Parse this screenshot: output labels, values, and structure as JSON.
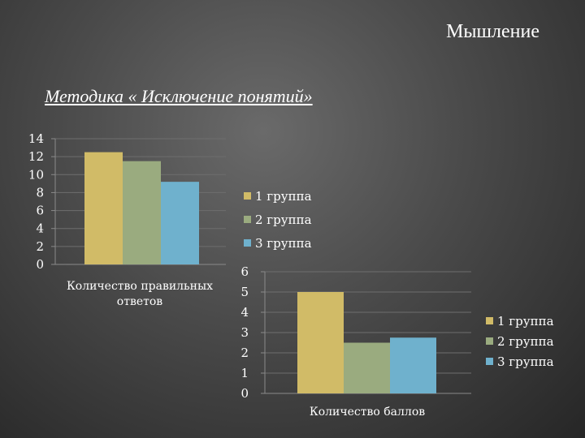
{
  "slide": {
    "title": "Мышление",
    "subtitle": "Методика « Исключение понятий»"
  },
  "chart_data": [
    {
      "type": "bar",
      "categories": [
        "Количество правильных ответов"
      ],
      "series": [
        {
          "name": "1 группа",
          "values": [
            12.5
          ],
          "color": "#d1bb67"
        },
        {
          "name": "2 группа",
          "values": [
            11.5
          ],
          "color": "#9aab7f"
        },
        {
          "name": "3 группа",
          "values": [
            9.2
          ],
          "color": "#6fb1cd"
        }
      ],
      "ylim": [
        0,
        14
      ],
      "yticks": [
        "0",
        "2",
        "4",
        "6",
        "8",
        "10",
        "12",
        "14"
      ],
      "grid": true,
      "legend": "right"
    },
    {
      "type": "bar",
      "categories": [
        "Количество баллов"
      ],
      "series": [
        {
          "name": "1 группа",
          "values": [
            5
          ],
          "color": "#d1bb67"
        },
        {
          "name": "2 группа",
          "values": [
            2.5
          ],
          "color": "#9aab7f"
        },
        {
          "name": "3 группа",
          "values": [
            2.75
          ],
          "color": "#6fb1cd"
        }
      ],
      "ylim": [
        0,
        6
      ],
      "yticks": [
        "0",
        "1",
        "2",
        "3",
        "4",
        "5",
        "6"
      ],
      "grid": true,
      "legend": "right"
    }
  ]
}
